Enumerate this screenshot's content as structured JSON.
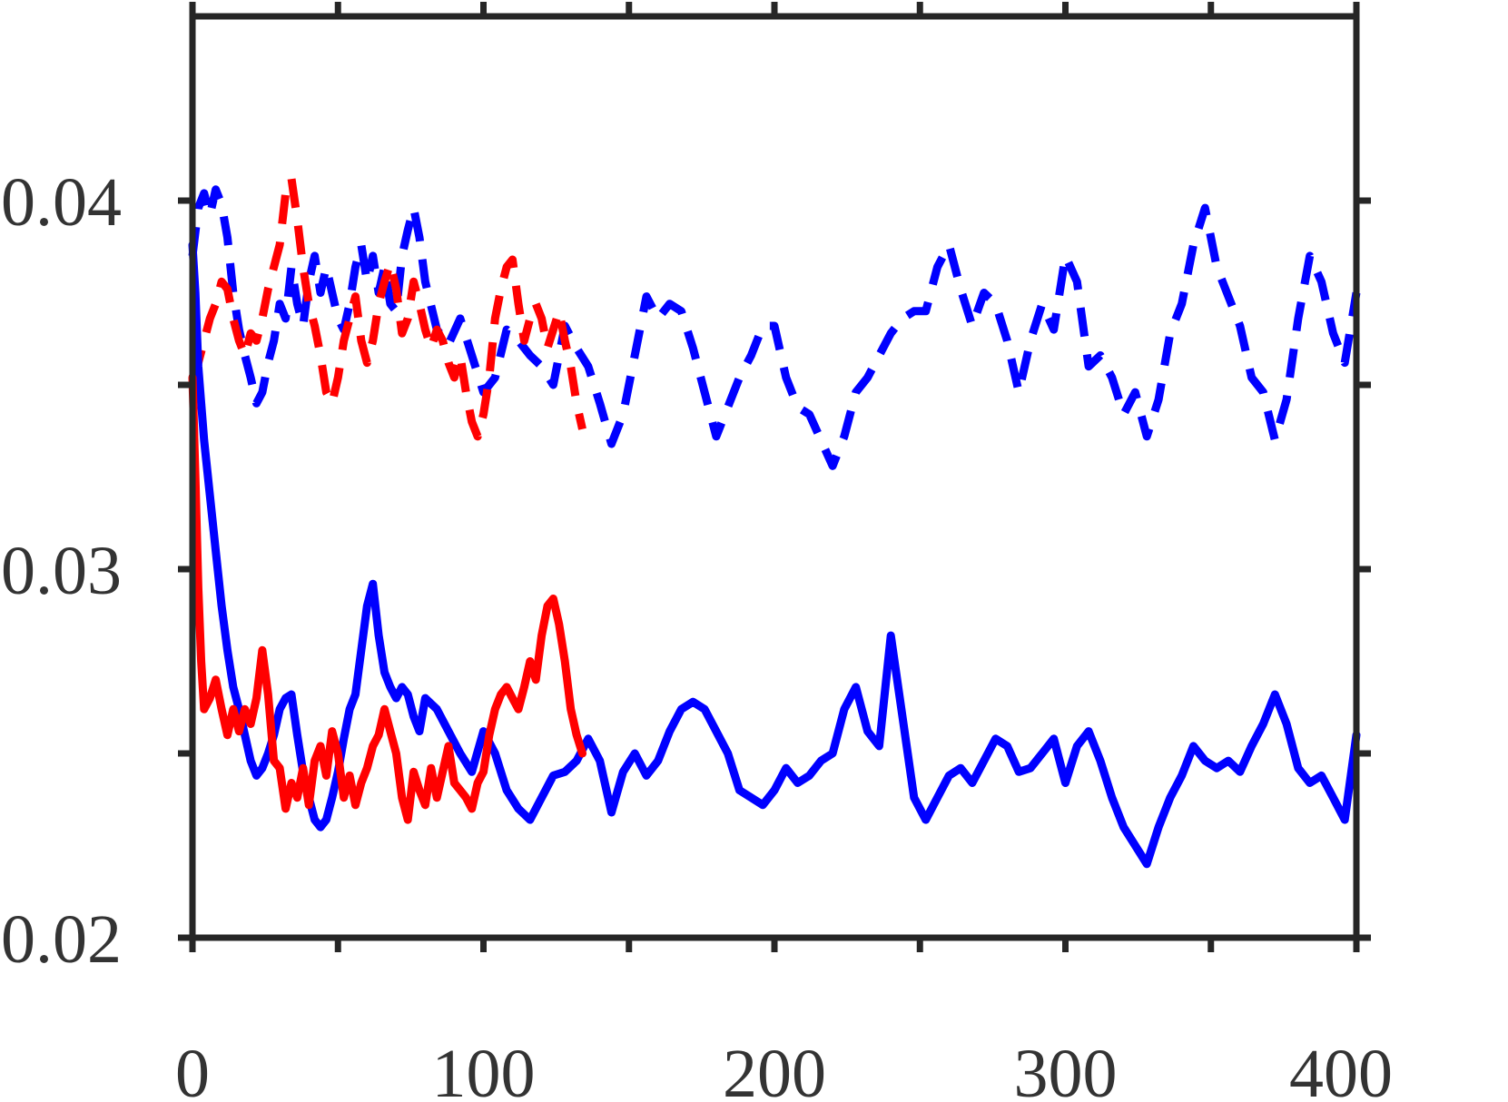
{
  "chart_data": {
    "type": "line",
    "title": "",
    "xlabel": "",
    "ylabel": "",
    "xlim": [
      0,
      400
    ],
    "ylim": [
      0.02,
      0.045
    ],
    "xticks": [
      0,
      50,
      100,
      150,
      200,
      250,
      300,
      350,
      400
    ],
    "xtick_labels": [
      {
        "value": 0,
        "label": "0"
      },
      {
        "value": 100,
        "label": "100"
      },
      {
        "value": 200,
        "label": "200"
      },
      {
        "value": 300,
        "label": "300"
      },
      {
        "value": 400,
        "label": "400"
      }
    ],
    "yticks": [
      0.02,
      0.025,
      0.03,
      0.035,
      0.04
    ],
    "ytick_labels": [
      {
        "value": 0.02,
        "label": "0.02"
      },
      {
        "value": 0.03,
        "label": "0.03"
      },
      {
        "value": 0.04,
        "label": "0.04"
      }
    ],
    "grid": false,
    "legend": "none",
    "series": [
      {
        "color": "#0000ff",
        "style": "dashed",
        "x": [
          0,
          2,
          4,
          6,
          8,
          10,
          12,
          14,
          16,
          18,
          20,
          22,
          24,
          26,
          28,
          30,
          32,
          34,
          36,
          38,
          40,
          42,
          44,
          46,
          48,
          50,
          52,
          54,
          56,
          58,
          60,
          62,
          64,
          66,
          68,
          70,
          72,
          74,
          76,
          78,
          80,
          84,
          88,
          92,
          96,
          100,
          104,
          108,
          112,
          116,
          120,
          124,
          128,
          132,
          136,
          140,
          144,
          148,
          152,
          156,
          160,
          164,
          168,
          172,
          176,
          180,
          184,
          188,
          192,
          196,
          200,
          204,
          208,
          212,
          216,
          220,
          224,
          228,
          232,
          236,
          240,
          244,
          248,
          252,
          256,
          260,
          264,
          268,
          272,
          276,
          280,
          284,
          288,
          292,
          296,
          300,
          304,
          308,
          312,
          316,
          320,
          324,
          328,
          332,
          336,
          340,
          344,
          348,
          352,
          356,
          360,
          364,
          368,
          372,
          376,
          380,
          384,
          388,
          392,
          396,
          400
        ],
        "y": [
          0.0385,
          0.0398,
          0.0402,
          0.0396,
          0.0403,
          0.0399,
          0.039,
          0.0375,
          0.0365,
          0.0358,
          0.0352,
          0.0345,
          0.0348,
          0.0356,
          0.0362,
          0.0372,
          0.0368,
          0.0382,
          0.0372,
          0.0366,
          0.0378,
          0.0385,
          0.0375,
          0.0382,
          0.0375,
          0.0368,
          0.0365,
          0.0372,
          0.0382,
          0.0388,
          0.0378,
          0.0385,
          0.0375,
          0.0382,
          0.0372,
          0.037,
          0.0385,
          0.0392,
          0.0398,
          0.039,
          0.0378,
          0.0365,
          0.0361,
          0.0368,
          0.0358,
          0.0348,
          0.0352,
          0.0365,
          0.0362,
          0.0358,
          0.0355,
          0.035,
          0.0366,
          0.036,
          0.0355,
          0.0345,
          0.0334,
          0.0342,
          0.0358,
          0.0374,
          0.0368,
          0.0372,
          0.037,
          0.036,
          0.0348,
          0.0336,
          0.0344,
          0.0352,
          0.0358,
          0.0366,
          0.0366,
          0.0352,
          0.0344,
          0.0342,
          0.0335,
          0.0328,
          0.0336,
          0.0348,
          0.0352,
          0.0358,
          0.0364,
          0.0368,
          0.037,
          0.037,
          0.0382,
          0.0388,
          0.0376,
          0.0366,
          0.0375,
          0.0372,
          0.0362,
          0.0348,
          0.0362,
          0.0372,
          0.0365,
          0.0385,
          0.0378,
          0.0355,
          0.0358,
          0.0352,
          0.0342,
          0.0348,
          0.0336,
          0.0346,
          0.0364,
          0.0372,
          0.0388,
          0.0398,
          0.0382,
          0.0374,
          0.0366,
          0.0352,
          0.0348,
          0.0335,
          0.0346,
          0.0368,
          0.0385,
          0.0378,
          0.0364,
          0.0356,
          0.0375
        ]
      },
      {
        "color": "#ff0000",
        "style": "dashed",
        "x": [
          0,
          2,
          4,
          6,
          8,
          10,
          12,
          14,
          16,
          18,
          20,
          22,
          24,
          26,
          28,
          30,
          32,
          34,
          36,
          38,
          40,
          42,
          44,
          46,
          48,
          50,
          52,
          54,
          56,
          58,
          60,
          62,
          64,
          66,
          68,
          70,
          72,
          74,
          76,
          78,
          80,
          82,
          84,
          86,
          88,
          90,
          92,
          94,
          96,
          98,
          100,
          102,
          104,
          106,
          108,
          110,
          112,
          114,
          116,
          118,
          120,
          122,
          124,
          126,
          128,
          130,
          132,
          134
        ],
        "y": [
          0.0352,
          0.0356,
          0.0362,
          0.0368,
          0.0372,
          0.0378,
          0.0376,
          0.0368,
          0.0362,
          0.0358,
          0.0364,
          0.0362,
          0.0368,
          0.0376,
          0.0382,
          0.0388,
          0.0402,
          0.0406,
          0.0395,
          0.0382,
          0.0372,
          0.0366,
          0.0358,
          0.0348,
          0.0345,
          0.0352,
          0.0362,
          0.0368,
          0.0374,
          0.0362,
          0.0356,
          0.0362,
          0.0372,
          0.0378,
          0.0383,
          0.0376,
          0.0364,
          0.0368,
          0.0378,
          0.0372,
          0.0365,
          0.036,
          0.0365,
          0.0362,
          0.0356,
          0.0352,
          0.0358,
          0.0348,
          0.034,
          0.0336,
          0.0342,
          0.0352,
          0.0368,
          0.0376,
          0.0382,
          0.0384,
          0.0372,
          0.0362,
          0.0368,
          0.0372,
          0.0368,
          0.036,
          0.0365,
          0.037,
          0.0362,
          0.0355,
          0.0345,
          0.0338
        ]
      },
      {
        "color": "#0000ff",
        "style": "solid",
        "x": [
          0,
          1,
          2,
          3,
          4,
          6,
          8,
          10,
          12,
          14,
          16,
          18,
          20,
          22,
          24,
          26,
          28,
          30,
          32,
          34,
          36,
          38,
          40,
          42,
          44,
          46,
          48,
          50,
          52,
          54,
          56,
          58,
          60,
          62,
          64,
          66,
          68,
          70,
          72,
          74,
          76,
          78,
          80,
          84,
          88,
          92,
          96,
          100,
          104,
          108,
          112,
          116,
          120,
          124,
          128,
          132,
          136,
          140,
          144,
          148,
          152,
          156,
          160,
          164,
          168,
          172,
          176,
          180,
          184,
          188,
          192,
          196,
          200,
          204,
          208,
          212,
          216,
          220,
          224,
          228,
          232,
          236,
          240,
          244,
          248,
          252,
          256,
          260,
          264,
          268,
          272,
          276,
          280,
          284,
          288,
          292,
          296,
          300,
          304,
          308,
          312,
          316,
          320,
          324,
          328,
          332,
          336,
          340,
          344,
          348,
          352,
          356,
          360,
          364,
          368,
          372,
          376,
          380,
          384,
          388,
          392,
          396,
          400
        ],
        "y": [
          0.0388,
          0.0375,
          0.0355,
          0.0345,
          0.0335,
          0.032,
          0.0305,
          0.029,
          0.0278,
          0.0268,
          0.0262,
          0.0255,
          0.0248,
          0.0244,
          0.0246,
          0.025,
          0.0255,
          0.0262,
          0.0265,
          0.0266,
          0.0255,
          0.0245,
          0.0238,
          0.0232,
          0.023,
          0.0232,
          0.0238,
          0.0245,
          0.0254,
          0.0262,
          0.0266,
          0.0278,
          0.029,
          0.0296,
          0.0282,
          0.0272,
          0.0268,
          0.0265,
          0.0268,
          0.0266,
          0.026,
          0.0256,
          0.0265,
          0.0262,
          0.0256,
          0.025,
          0.0245,
          0.0256,
          0.025,
          0.024,
          0.0235,
          0.0232,
          0.0238,
          0.0244,
          0.0245,
          0.0248,
          0.0254,
          0.0248,
          0.0234,
          0.0245,
          0.025,
          0.0244,
          0.0248,
          0.0256,
          0.0262,
          0.0264,
          0.0262,
          0.0256,
          0.025,
          0.024,
          0.0238,
          0.0236,
          0.024,
          0.0246,
          0.0242,
          0.0244,
          0.0248,
          0.025,
          0.0262,
          0.0268,
          0.0256,
          0.0252,
          0.0282,
          0.026,
          0.0238,
          0.0232,
          0.0238,
          0.0244,
          0.0246,
          0.0242,
          0.0248,
          0.0254,
          0.0252,
          0.0245,
          0.0246,
          0.025,
          0.0254,
          0.0242,
          0.0252,
          0.0256,
          0.0248,
          0.0238,
          0.023,
          0.0225,
          0.022,
          0.023,
          0.0238,
          0.0244,
          0.0252,
          0.0248,
          0.0246,
          0.0248,
          0.0245,
          0.0252,
          0.0258,
          0.0266,
          0.0258,
          0.0246,
          0.0242,
          0.0244,
          0.0238,
          0.0232,
          0.0255
        ]
      },
      {
        "color": "#ff0000",
        "style": "solid",
        "x": [
          0,
          1,
          2,
          3,
          4,
          6,
          8,
          10,
          12,
          14,
          16,
          18,
          20,
          22,
          24,
          26,
          28,
          30,
          32,
          34,
          36,
          38,
          40,
          42,
          44,
          46,
          48,
          50,
          52,
          54,
          56,
          58,
          60,
          62,
          64,
          66,
          68,
          70,
          72,
          74,
          76,
          78,
          80,
          82,
          84,
          86,
          88,
          90,
          92,
          94,
          96,
          98,
          100,
          102,
          104,
          106,
          108,
          110,
          112,
          114,
          116,
          118,
          120,
          122,
          124,
          126,
          128,
          130,
          132,
          134
        ],
        "y": [
          0.0352,
          0.0325,
          0.0295,
          0.0275,
          0.0262,
          0.0265,
          0.027,
          0.0262,
          0.0255,
          0.0262,
          0.0256,
          0.0262,
          0.0258,
          0.0265,
          0.0278,
          0.0266,
          0.0248,
          0.0246,
          0.0235,
          0.0242,
          0.0238,
          0.0246,
          0.0236,
          0.0248,
          0.0252,
          0.0244,
          0.0256,
          0.025,
          0.0238,
          0.0244,
          0.0236,
          0.0242,
          0.0246,
          0.0252,
          0.0255,
          0.0262,
          0.0256,
          0.025,
          0.0238,
          0.0232,
          0.0245,
          0.024,
          0.0236,
          0.0246,
          0.0238,
          0.0245,
          0.0252,
          0.0242,
          0.024,
          0.0238,
          0.0235,
          0.0242,
          0.0245,
          0.0255,
          0.0262,
          0.0266,
          0.0268,
          0.0265,
          0.0262,
          0.0268,
          0.0275,
          0.027,
          0.0282,
          0.029,
          0.0292,
          0.0285,
          0.0275,
          0.0262,
          0.0255,
          0.025
        ]
      }
    ]
  }
}
